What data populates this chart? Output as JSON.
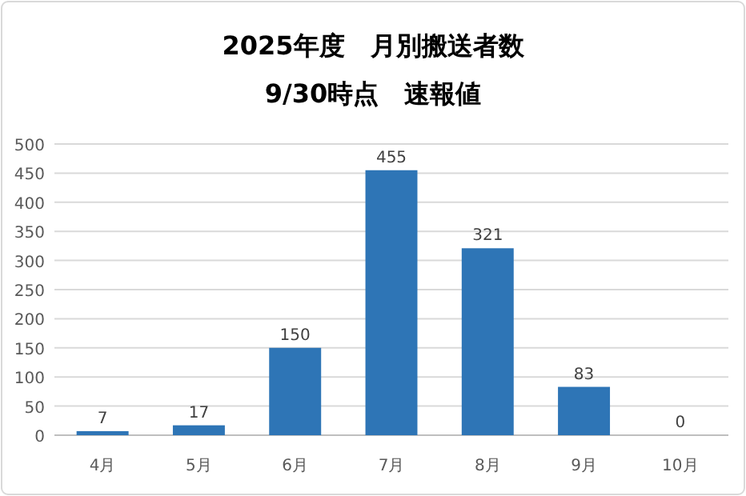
{
  "chart_data": {
    "type": "bar",
    "title": "2025年度　月別搬送者数",
    "subtitle": "9/30時点　速報値",
    "categories": [
      "4月",
      "5月",
      "6月",
      "7月",
      "8月",
      "9月",
      "10月"
    ],
    "values": [
      7,
      17,
      150,
      455,
      321,
      83,
      0
    ],
    "color": "#2e75b6",
    "ylim": [
      0,
      500
    ],
    "yticks": [
      0,
      50,
      100,
      150,
      200,
      250,
      300,
      350,
      400,
      450,
      500
    ],
    "grid": "y",
    "data_labels": true
  }
}
